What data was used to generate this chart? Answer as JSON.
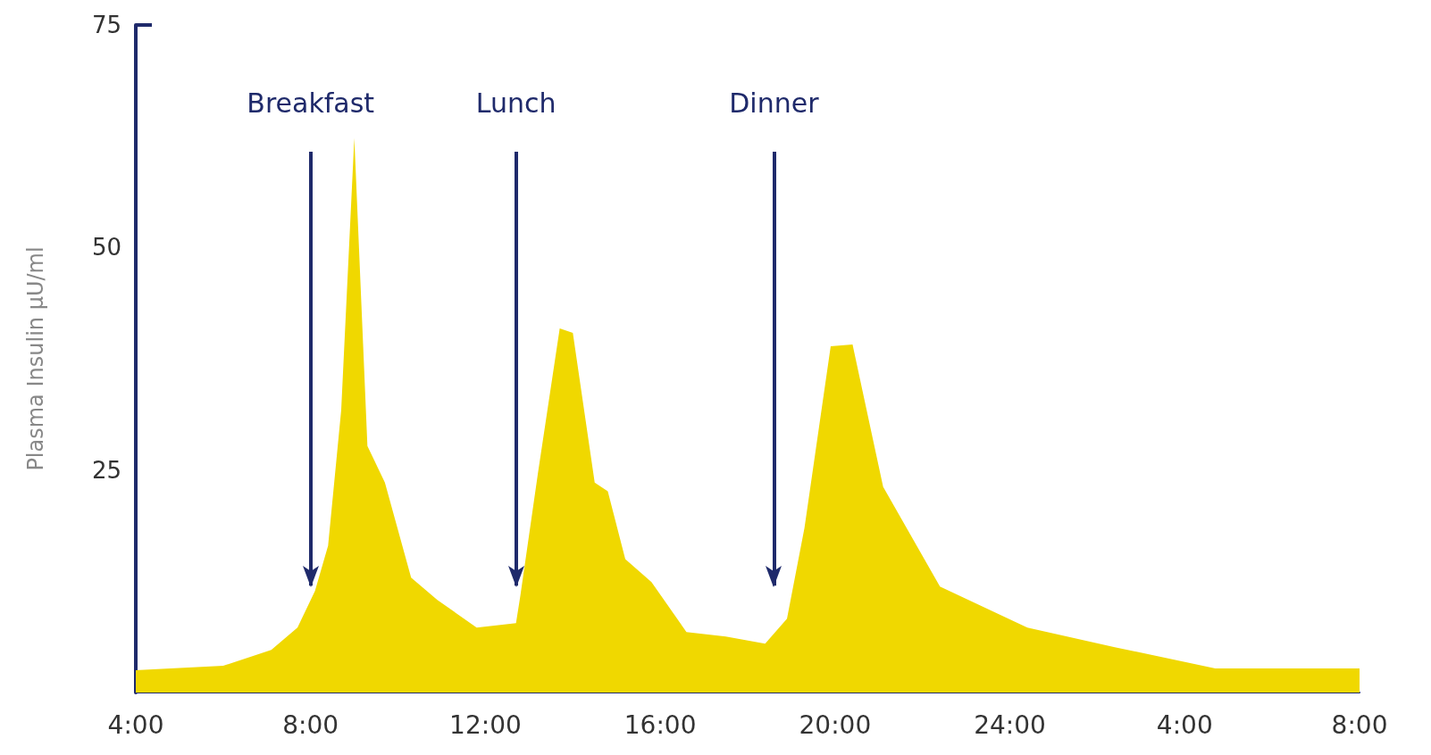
{
  "chart_data": {
    "type": "area",
    "ylabel": "Plasma Insulin μU/ml",
    "x": [
      "2000-01-01T04:00",
      "2000-01-01T06:00",
      "2000-01-01T07:06",
      "2000-01-01T07:42",
      "2000-01-01T08:06",
      "2000-01-01T08:24",
      "2000-01-01T08:42",
      "2000-01-01T09:00",
      "2000-01-01T09:18",
      "2000-01-01T09:42",
      "2000-01-01T10:18",
      "2000-01-01T10:54",
      "2000-01-01T11:48",
      "2000-01-01T12:42",
      "2000-01-01T12:48",
      "2000-01-01T13:12",
      "2000-01-01T13:42",
      "2000-01-01T14:00",
      "2000-01-01T14:30",
      "2000-01-01T14:48",
      "2000-01-01T15:12",
      "2000-01-01T15:48",
      "2000-01-01T16:36",
      "2000-01-01T17:30",
      "2000-01-01T18:24",
      "2000-01-01T18:54",
      "2000-01-01T19:18",
      "2000-01-01T19:54",
      "2000-01-01T20:24",
      "2000-01-01T21:06",
      "2000-01-01T22:24",
      "2000-01-02T00:24",
      "2000-01-02T02:24",
      "2000-01-02T04:42",
      "2000-01-02T08:00"
    ],
    "series": [
      {
        "color": "#f0d800",
        "values": [
          2.5,
          3,
          4.8,
          7.3,
          11.4,
          16.5,
          31.7,
          62.3,
          27.7,
          23.6,
          12.9,
          10.4,
          7.3,
          7.8,
          10.9,
          24.6,
          40.9,
          40.4,
          23.6,
          22.6,
          15.0,
          12.4,
          6.8,
          6.3,
          5.5,
          8.3,
          18.5,
          38.9,
          39.1,
          23.1,
          11.9,
          7.3,
          5.1,
          2.7,
          2.7
        ]
      }
    ],
    "xlim": [
      "2000-01-01T04:00",
      "2000-01-02T08:00"
    ],
    "xticks": [
      {
        "value": "2000-01-01T04:00",
        "label": "4:00"
      },
      {
        "value": "2000-01-01T08:00",
        "label": "8:00"
      },
      {
        "value": "2000-01-01T12:00",
        "label": "12:00"
      },
      {
        "value": "2000-01-01T16:00",
        "label": "16:00"
      },
      {
        "value": "2000-01-01T20:00",
        "label": "20:00"
      },
      {
        "value": "2000-01-02T00:00",
        "label": "24:00"
      },
      {
        "value": "2000-01-02T04:00",
        "label": "4:00"
      },
      {
        "value": "2000-01-02T08:00",
        "label": "8:00"
      }
    ],
    "ylim": [
      0,
      75
    ],
    "yticks": [
      25,
      50,
      75
    ],
    "ref_lines": [
      {
        "axis": "x",
        "value": "2000-01-01T08:00",
        "label": "Breakfast",
        "color": "#1f2a6b"
      },
      {
        "axis": "x",
        "value": "2000-01-01T12:42",
        "label": "Lunch",
        "color": "#1f2a6b"
      },
      {
        "axis": "x",
        "value": "2000-01-01T18:36",
        "label": "Dinner",
        "color": "#1f2a6b"
      }
    ],
    "grid": false,
    "marker": "none"
  }
}
